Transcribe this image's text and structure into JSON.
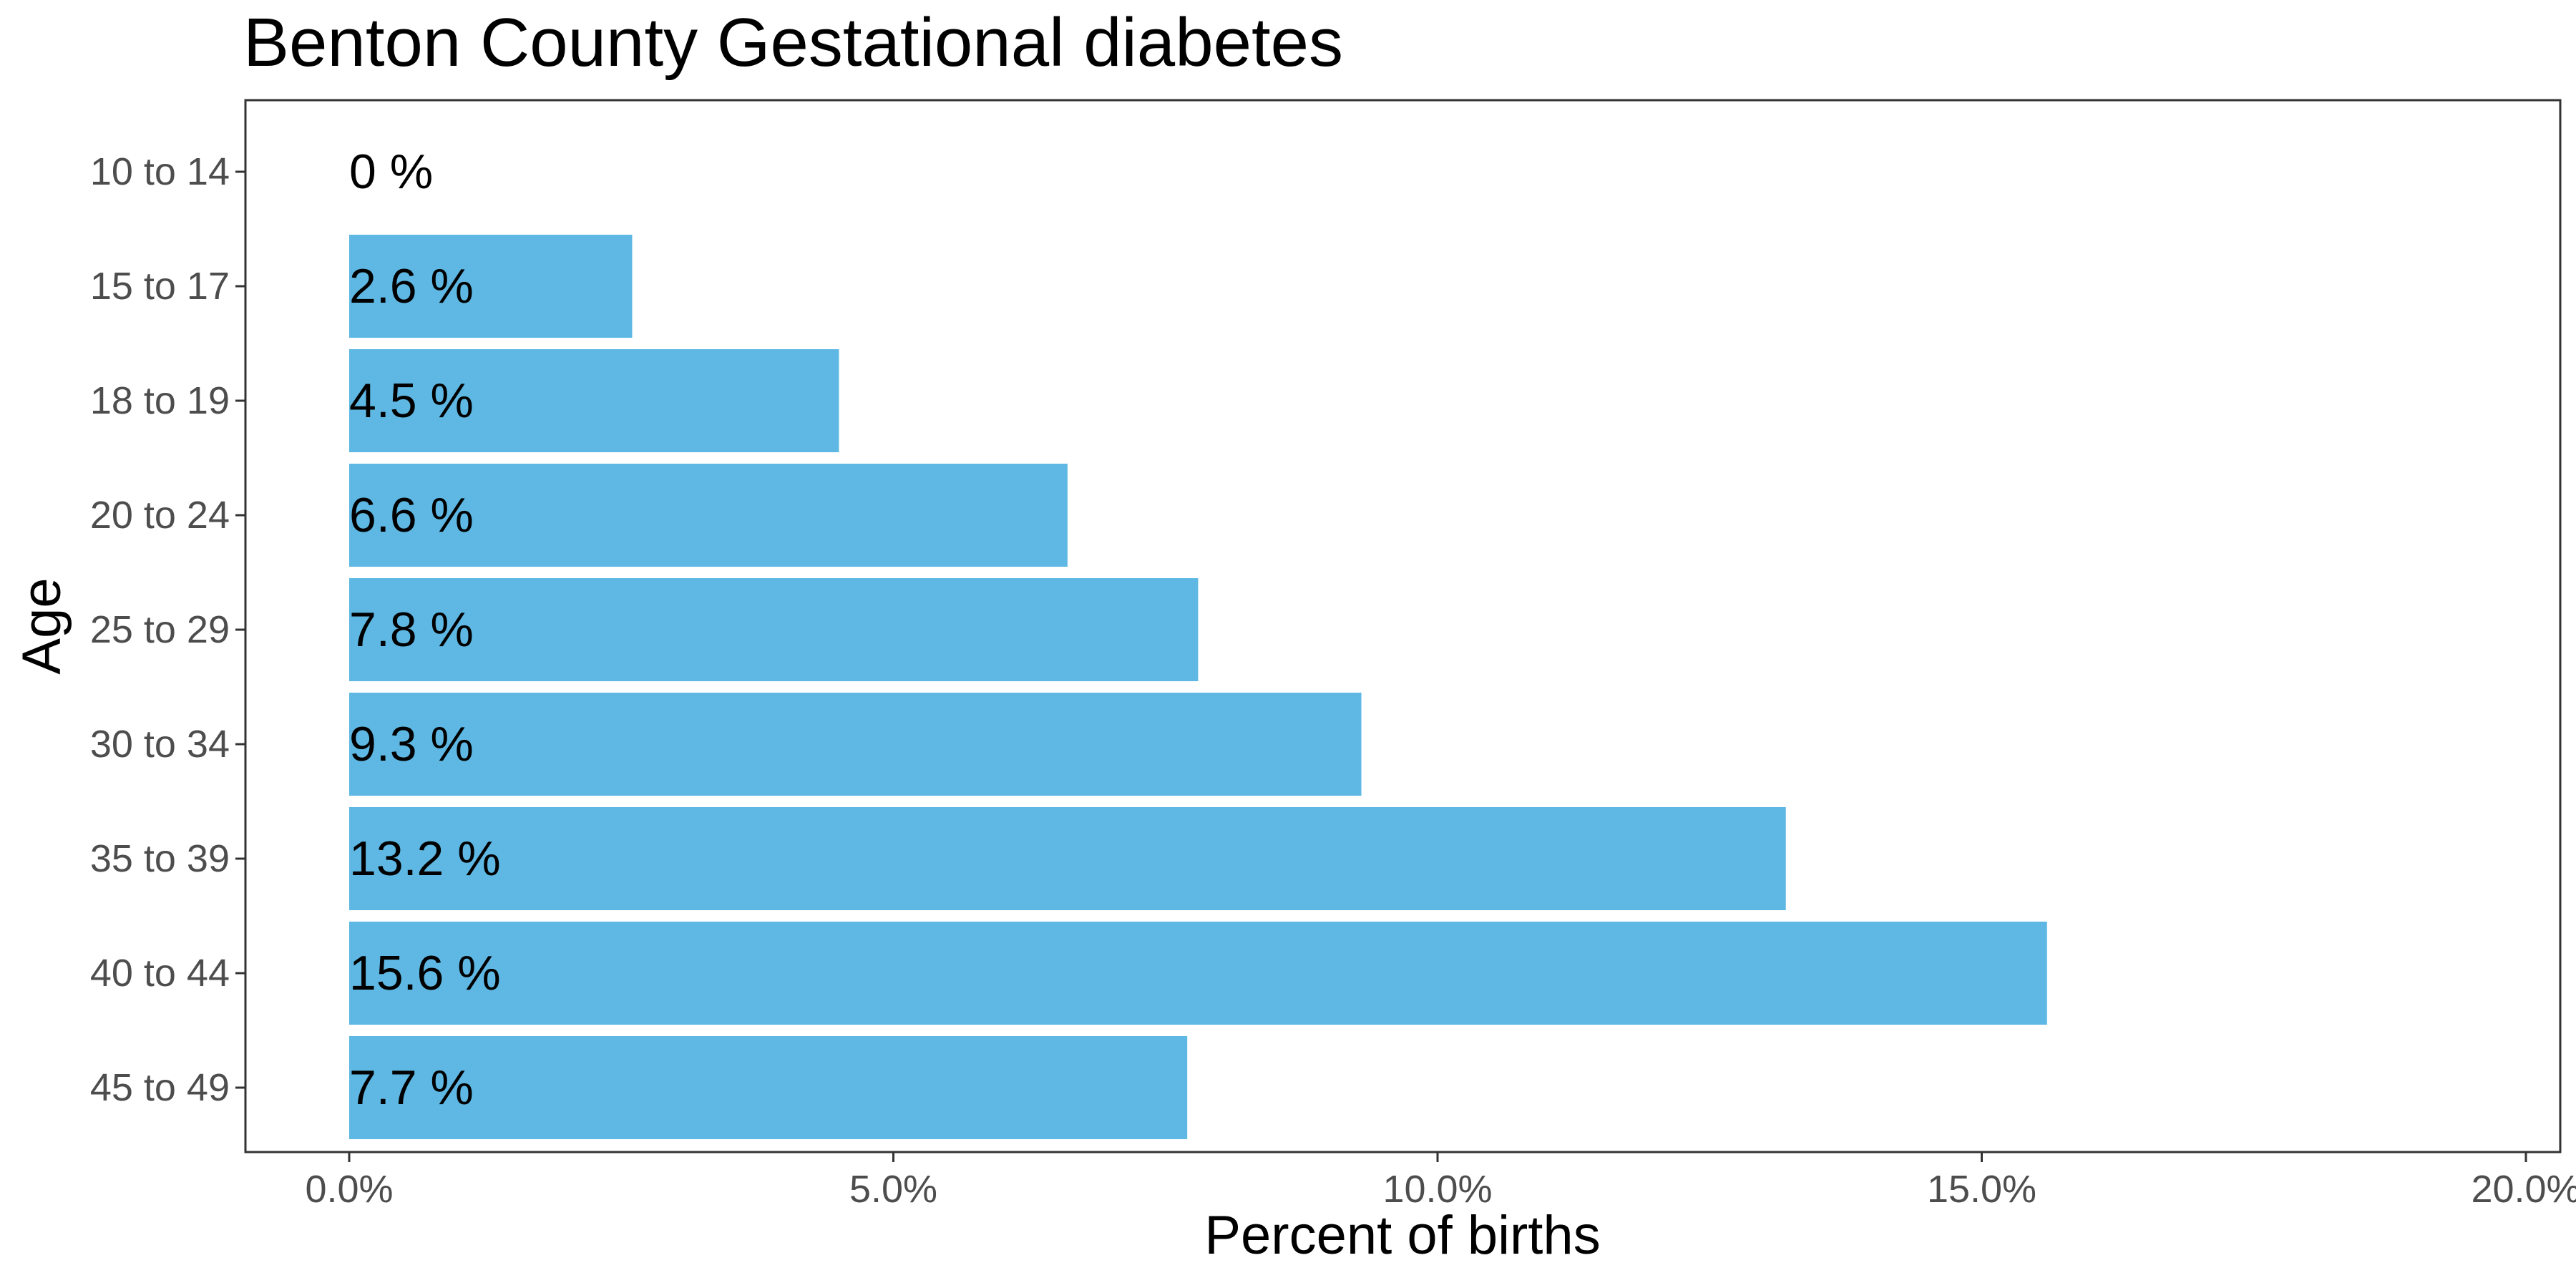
{
  "chart_data": {
    "type": "bar",
    "orientation": "horizontal",
    "title": "Benton County Gestational diabetes",
    "xlabel": "Percent of births",
    "ylabel": "Age",
    "categories": [
      "10 to 14",
      "15 to 17",
      "18 to 19",
      "20 to 24",
      "25 to 29",
      "30 to 34",
      "35 to 39",
      "40 to 44",
      "45 to 49"
    ],
    "values": [
      0,
      2.6,
      4.5,
      6.6,
      7.8,
      9.3,
      13.2,
      15.6,
      7.7
    ],
    "data_labels": [
      "0 %",
      "2.6 %",
      "4.5 %",
      "6.6 %",
      "7.8 %",
      "9.3 %",
      "13.2 %",
      "15.6 %",
      "7.7 %"
    ],
    "xlim": [
      0,
      20
    ],
    "x_ticks": [
      0,
      5,
      10,
      15,
      20
    ],
    "x_tick_labels": [
      "0.0%",
      "5.0%",
      "10.0%",
      "15.0%",
      "20.0%"
    ],
    "bar_color": "#5EB8E3",
    "grid": false,
    "legend": "none"
  }
}
